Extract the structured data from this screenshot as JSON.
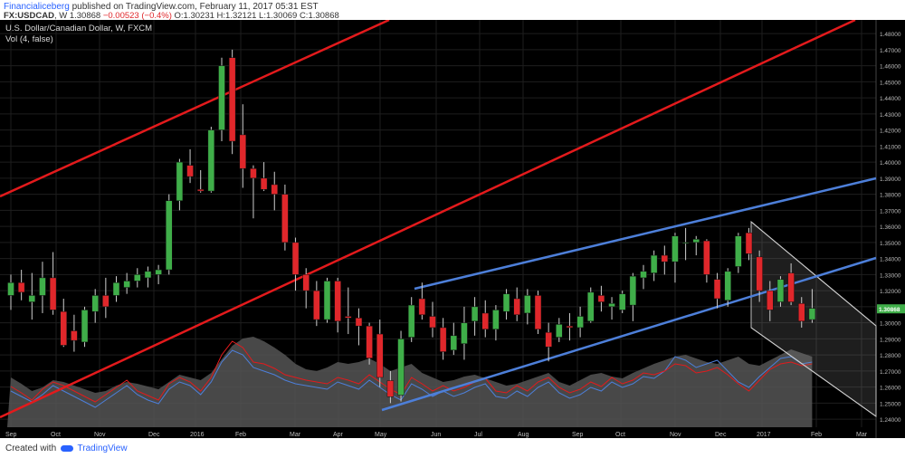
{
  "header": {
    "author": "Financialiceberg",
    "published_text": "published on TradingView.com, February 11, 2017 05:31 EST",
    "symbol": "FX:USDCAD",
    "interval": "W",
    "last": "1.30868",
    "change": "−0.00523 (−0.4%)",
    "open": "O:1.30231",
    "high": "H:1.32121",
    "low": "L:1.30069",
    "close": "C:1.30868"
  },
  "legend": {
    "title": "U.S. Dollar/Canadian Dollar, W, FXCM",
    "volume": "Vol (4, false)"
  },
  "footer": {
    "created_with": "Created with",
    "brand": "TradingView"
  },
  "colors": {
    "background": "#000000",
    "up": "#3fae49",
    "down": "#e0272b",
    "red_channel": "#e31a1c",
    "blue_channel": "#4d7fd9",
    "grid": "#1e1e1e",
    "volume_area": "#555555"
  },
  "chart_data": {
    "type": "candlestick",
    "title": "U.S. Dollar/Canadian Dollar, W, FXCM",
    "ylim": [
      1.235,
      1.4885
    ],
    "y_ticks": [
      "1.24000",
      "1.25000",
      "1.26000",
      "1.27000",
      "1.28000",
      "1.29000",
      "1.30000",
      "1.31000",
      "1.32000",
      "1.33000",
      "1.34000",
      "1.35000",
      "1.36000",
      "1.37000",
      "1.38000",
      "1.39000",
      "1.40000",
      "1.41000",
      "1.42000",
      "1.43000",
      "1.44000",
      "1.45000",
      "1.46000",
      "1.47000",
      "1.48000"
    ],
    "x_ticks": [
      "Sep",
      "Oct",
      "Nov",
      "Dec",
      "2016",
      "Feb",
      "Mar",
      "Apr",
      "May",
      "Jun",
      "Jul",
      "Aug",
      "Sep",
      "Oct",
      "Nov",
      "Dec",
      "2017",
      "Feb",
      "Mar"
    ],
    "last_price_label": "1.30868",
    "candles": [
      {
        "o": 1.317,
        "h": 1.33,
        "l": 1.308,
        "c": 1.325
      },
      {
        "o": 1.325,
        "h": 1.333,
        "l": 1.314,
        "c": 1.319
      },
      {
        "o": 1.313,
        "h": 1.331,
        "l": 1.302,
        "c": 1.317
      },
      {
        "o": 1.317,
        "h": 1.338,
        "l": 1.306,
        "c": 1.328
      },
      {
        "o": 1.328,
        "h": 1.344,
        "l": 1.305,
        "c": 1.308
      },
      {
        "o": 1.307,
        "h": 1.315,
        "l": 1.285,
        "c": 1.286
      },
      {
        "o": 1.295,
        "h": 1.305,
        "l": 1.282,
        "c": 1.289
      },
      {
        "o": 1.288,
        "h": 1.31,
        "l": 1.285,
        "c": 1.308
      },
      {
        "o": 1.307,
        "h": 1.321,
        "l": 1.3,
        "c": 1.317
      },
      {
        "o": 1.317,
        "h": 1.328,
        "l": 1.303,
        "c": 1.31
      },
      {
        "o": 1.317,
        "h": 1.329,
        "l": 1.313,
        "c": 1.325
      },
      {
        "o": 1.322,
        "h": 1.331,
        "l": 1.318,
        "c": 1.326
      },
      {
        "o": 1.326,
        "h": 1.334,
        "l": 1.322,
        "c": 1.33
      },
      {
        "o": 1.328,
        "h": 1.335,
        "l": 1.322,
        "c": 1.332
      },
      {
        "o": 1.33,
        "h": 1.336,
        "l": 1.324,
        "c": 1.333
      },
      {
        "o": 1.333,
        "h": 1.38,
        "l": 1.33,
        "c": 1.376
      },
      {
        "o": 1.376,
        "h": 1.402,
        "l": 1.37,
        "c": 1.4
      },
      {
        "o": 1.398,
        "h": 1.408,
        "l": 1.387,
        "c": 1.391
      },
      {
        "o": 1.383,
        "h": 1.395,
        "l": 1.381,
        "c": 1.382
      },
      {
        "o": 1.382,
        "h": 1.422,
        "l": 1.381,
        "c": 1.42
      },
      {
        "o": 1.42,
        "h": 1.465,
        "l": 1.413,
        "c": 1.46
      },
      {
        "o": 1.465,
        "h": 1.47,
        "l": 1.405,
        "c": 1.413
      },
      {
        "o": 1.417,
        "h": 1.436,
        "l": 1.384,
        "c": 1.396
      },
      {
        "o": 1.396,
        "h": 1.398,
        "l": 1.365,
        "c": 1.39
      },
      {
        "o": 1.39,
        "h": 1.4,
        "l": 1.382,
        "c": 1.383
      },
      {
        "o": 1.386,
        "h": 1.394,
        "l": 1.37,
        "c": 1.38
      },
      {
        "o": 1.38,
        "h": 1.386,
        "l": 1.345,
        "c": 1.35
      },
      {
        "o": 1.35,
        "h": 1.353,
        "l": 1.32,
        "c": 1.33
      },
      {
        "o": 1.33,
        "h": 1.334,
        "l": 1.309,
        "c": 1.32
      },
      {
        "o": 1.32,
        "h": 1.326,
        "l": 1.298,
        "c": 1.302
      },
      {
        "o": 1.302,
        "h": 1.328,
        "l": 1.3,
        "c": 1.326
      },
      {
        "o": 1.326,
        "h": 1.328,
        "l": 1.294,
        "c": 1.301
      },
      {
        "o": 1.304,
        "h": 1.322,
        "l": 1.293,
        "c": 1.303
      },
      {
        "o": 1.303,
        "h": 1.309,
        "l": 1.286,
        "c": 1.298
      },
      {
        "o": 1.298,
        "h": 1.3,
        "l": 1.274,
        "c": 1.278
      },
      {
        "o": 1.293,
        "h": 1.302,
        "l": 1.26,
        "c": 1.266
      },
      {
        "o": 1.264,
        "h": 1.27,
        "l": 1.25,
        "c": 1.254
      },
      {
        "o": 1.255,
        "h": 1.295,
        "l": 1.251,
        "c": 1.29
      },
      {
        "o": 1.291,
        "h": 1.316,
        "l": 1.288,
        "c": 1.311
      },
      {
        "o": 1.315,
        "h": 1.325,
        "l": 1.302,
        "c": 1.305
      },
      {
        "o": 1.304,
        "h": 1.313,
        "l": 1.291,
        "c": 1.297
      },
      {
        "o": 1.297,
        "h": 1.303,
        "l": 1.277,
        "c": 1.282
      },
      {
        "o": 1.283,
        "h": 1.3,
        "l": 1.28,
        "c": 1.292
      },
      {
        "o": 1.287,
        "h": 1.31,
        "l": 1.277,
        "c": 1.3
      },
      {
        "o": 1.301,
        "h": 1.316,
        "l": 1.292,
        "c": 1.31
      },
      {
        "o": 1.306,
        "h": 1.314,
        "l": 1.291,
        "c": 1.296
      },
      {
        "o": 1.296,
        "h": 1.311,
        "l": 1.289,
        "c": 1.308
      },
      {
        "o": 1.307,
        "h": 1.321,
        "l": 1.302,
        "c": 1.318
      },
      {
        "o": 1.315,
        "h": 1.322,
        "l": 1.301,
        "c": 1.305
      },
      {
        "o": 1.306,
        "h": 1.321,
        "l": 1.299,
        "c": 1.317
      },
      {
        "o": 1.317,
        "h": 1.32,
        "l": 1.293,
        "c": 1.296
      },
      {
        "o": 1.294,
        "h": 1.3,
        "l": 1.276,
        "c": 1.285
      },
      {
        "o": 1.291,
        "h": 1.303,
        "l": 1.288,
        "c": 1.299
      },
      {
        "o": 1.298,
        "h": 1.306,
        "l": 1.289,
        "c": 1.297
      },
      {
        "o": 1.297,
        "h": 1.31,
        "l": 1.291,
        "c": 1.304
      },
      {
        "o": 1.301,
        "h": 1.322,
        "l": 1.3,
        "c": 1.319
      },
      {
        "o": 1.317,
        "h": 1.323,
        "l": 1.307,
        "c": 1.313
      },
      {
        "o": 1.31,
        "h": 1.316,
        "l": 1.302,
        "c": 1.312
      },
      {
        "o": 1.308,
        "h": 1.32,
        "l": 1.306,
        "c": 1.318
      },
      {
        "o": 1.311,
        "h": 1.331,
        "l": 1.301,
        "c": 1.329
      },
      {
        "o": 1.328,
        "h": 1.336,
        "l": 1.321,
        "c": 1.332
      },
      {
        "o": 1.331,
        "h": 1.345,
        "l": 1.326,
        "c": 1.342
      },
      {
        "o": 1.342,
        "h": 1.348,
        "l": 1.33,
        "c": 1.338
      },
      {
        "o": 1.338,
        "h": 1.356,
        "l": 1.325,
        "c": 1.354
      },
      {
        "o": 1.35,
        "h": 1.359,
        "l": 1.339,
        "c": 1.35
      },
      {
        "o": 1.35,
        "h": 1.354,
        "l": 1.342,
        "c": 1.352
      },
      {
        "o": 1.351,
        "h": 1.352,
        "l": 1.325,
        "c": 1.33
      },
      {
        "o": 1.327,
        "h": 1.331,
        "l": 1.309,
        "c": 1.315
      },
      {
        "o": 1.314,
        "h": 1.334,
        "l": 1.31,
        "c": 1.332
      },
      {
        "o": 1.335,
        "h": 1.356,
        "l": 1.331,
        "c": 1.354
      },
      {
        "o": 1.356,
        "h": 1.359,
        "l": 1.339,
        "c": 1.343
      },
      {
        "o": 1.341,
        "h": 1.345,
        "l": 1.313,
        "c": 1.32
      },
      {
        "o": 1.32,
        "h": 1.326,
        "l": 1.301,
        "c": 1.308
      },
      {
        "o": 1.313,
        "h": 1.329,
        "l": 1.31,
        "c": 1.327
      },
      {
        "o": 1.331,
        "h": 1.337,
        "l": 1.311,
        "c": 1.313
      },
      {
        "o": 1.312,
        "h": 1.316,
        "l": 1.297,
        "c": 1.301
      },
      {
        "o": 1.302,
        "h": 1.321,
        "l": 1.3,
        "c": 1.309
      }
    ],
    "volume": [
      0.55,
      0.48,
      0.4,
      0.44,
      0.52,
      0.5,
      0.46,
      0.42,
      0.38,
      0.4,
      0.46,
      0.5,
      0.48,
      0.45,
      0.42,
      0.5,
      0.58,
      0.55,
      0.52,
      0.6,
      0.75,
      0.9,
      0.98,
      1.0,
      0.95,
      0.88,
      0.8,
      0.7,
      0.64,
      0.62,
      0.66,
      0.72,
      0.7,
      0.72,
      0.76,
      0.7,
      0.62,
      0.66,
      0.7,
      0.6,
      0.55,
      0.5,
      0.52,
      0.56,
      0.58,
      0.54,
      0.5,
      0.46,
      0.48,
      0.52,
      0.56,
      0.6,
      0.5,
      0.46,
      0.52,
      0.58,
      0.6,
      0.56,
      0.54,
      0.6,
      0.65,
      0.7,
      0.74,
      0.78,
      0.8,
      0.76,
      0.72,
      0.7,
      0.74,
      0.78,
      0.7,
      0.68,
      0.74,
      0.8,
      0.86,
      0.82,
      0.78
    ],
    "volume_lines": {
      "red": [
        0.45,
        0.38,
        0.3,
        0.42,
        0.5,
        0.46,
        0.4,
        0.34,
        0.28,
        0.36,
        0.44,
        0.52,
        0.4,
        0.35,
        0.3,
        0.48,
        0.55,
        0.5,
        0.4,
        0.55,
        0.8,
        0.95,
        0.88,
        0.72,
        0.7,
        0.65,
        0.58,
        0.55,
        0.52,
        0.5,
        0.48,
        0.55,
        0.52,
        0.48,
        0.58,
        0.5,
        0.42,
        0.36,
        0.55,
        0.48,
        0.4,
        0.46,
        0.4,
        0.44,
        0.5,
        0.54,
        0.4,
        0.38,
        0.46,
        0.4,
        0.5,
        0.55,
        0.44,
        0.38,
        0.42,
        0.5,
        0.45,
        0.55,
        0.48,
        0.52,
        0.6,
        0.58,
        0.62,
        0.7,
        0.68,
        0.6,
        0.62,
        0.66,
        0.58,
        0.48,
        0.4,
        0.52,
        0.64,
        0.7,
        0.72,
        0.68,
        0.7
      ],
      "blue": [
        0.4,
        0.34,
        0.28,
        0.36,
        0.46,
        0.4,
        0.34,
        0.28,
        0.22,
        0.3,
        0.38,
        0.46,
        0.36,
        0.3,
        0.26,
        0.42,
        0.5,
        0.46,
        0.36,
        0.5,
        0.72,
        0.85,
        0.8,
        0.66,
        0.62,
        0.58,
        0.52,
        0.48,
        0.46,
        0.44,
        0.42,
        0.5,
        0.46,
        0.42,
        0.52,
        0.44,
        0.36,
        0.3,
        0.48,
        0.42,
        0.34,
        0.4,
        0.34,
        0.38,
        0.44,
        0.48,
        0.34,
        0.32,
        0.4,
        0.34,
        0.44,
        0.5,
        0.38,
        0.32,
        0.36,
        0.44,
        0.4,
        0.5,
        0.44,
        0.48,
        0.56,
        0.54,
        0.62,
        0.78,
        0.74,
        0.66,
        0.7,
        0.74,
        0.62,
        0.5,
        0.44,
        0.56,
        0.66,
        0.76,
        0.78,
        0.7,
        0.72
      ]
    }
  }
}
